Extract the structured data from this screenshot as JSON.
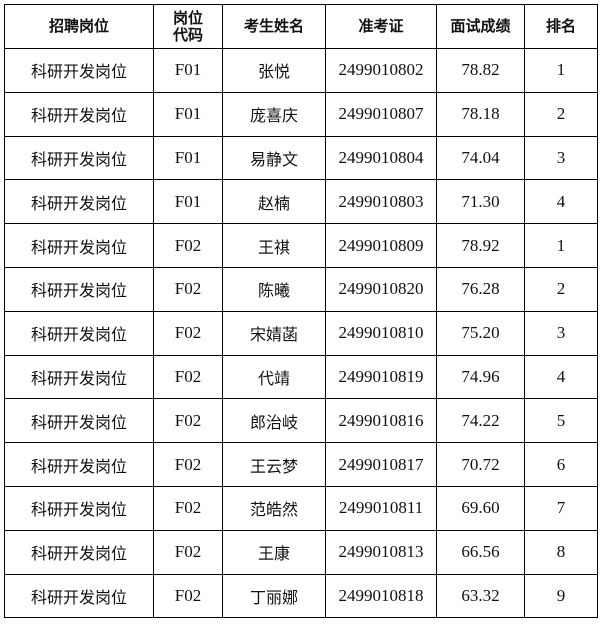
{
  "table": {
    "headers": [
      "招聘岗位",
      "岗位\n代码",
      "考生姓名",
      "准考证",
      "面试成绩",
      "排名"
    ],
    "rows": [
      [
        "科研开发岗位",
        "F01",
        "张悦",
        "2499010802",
        "78.82",
        "1"
      ],
      [
        "科研开发岗位",
        "F01",
        "庞喜庆",
        "2499010807",
        "78.18",
        "2"
      ],
      [
        "科研开发岗位",
        "F01",
        "易静文",
        "2499010804",
        "74.04",
        "3"
      ],
      [
        "科研开发岗位",
        "F01",
        "赵楠",
        "2499010803",
        "71.30",
        "4"
      ],
      [
        "科研开发岗位",
        "F02",
        "王祺",
        "2499010809",
        "78.92",
        "1"
      ],
      [
        "科研开发岗位",
        "F02",
        "陈曦",
        "2499010820",
        "76.28",
        "2"
      ],
      [
        "科研开发岗位",
        "F02",
        "宋婧菡",
        "2499010810",
        "75.20",
        "3"
      ],
      [
        "科研开发岗位",
        "F02",
        "代靖",
        "2499010819",
        "74.96",
        "4"
      ],
      [
        "科研开发岗位",
        "F02",
        "郎治岐",
        "2499010816",
        "74.22",
        "5"
      ],
      [
        "科研开发岗位",
        "F02",
        "王云梦",
        "2499010817",
        "70.72",
        "6"
      ],
      [
        "科研开发岗位",
        "F02",
        "范皓然",
        "2499010811",
        "69.60",
        "7"
      ],
      [
        "科研开发岗位",
        "F02",
        "王康",
        "2499010813",
        "66.56",
        "8"
      ],
      [
        "科研开发岗位",
        "F02",
        "丁丽娜",
        "2499010818",
        "63.32",
        "9"
      ]
    ]
  }
}
